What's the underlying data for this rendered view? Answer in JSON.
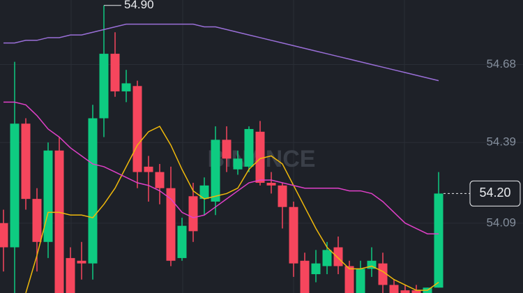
{
  "chart_data": {
    "type": "candlestick",
    "watermark": "BINANCE",
    "open": [
      54.09,
      54.0,
      54.46,
      54.18,
      54.02,
      54.36,
      53.96,
      53.95,
      53.94,
      54.48,
      54.72,
      54.58,
      54.6,
      54.3,
      54.28,
      54.22,
      53.96,
      54.19,
      54.18,
      54.17,
      54.4,
      54.29,
      54.3,
      54.43,
      54.24,
      54.23,
      54.15,
      53.95,
      53.9,
      53.93,
      54.0,
      53.93,
      53.83,
      53.92,
      53.94,
      53.86,
      53.84,
      53.84,
      53.83,
      53.85
    ],
    "high": [
      54.14,
      54.69,
      54.48,
      54.22,
      54.39,
      54.41,
      54.0,
      54.02,
      54.53,
      54.9,
      54.8,
      54.66,
      54.62,
      54.34,
      54.31,
      54.3,
      54.11,
      54.24,
      54.26,
      54.45,
      54.45,
      54.36,
      54.45,
      54.47,
      54.28,
      54.24,
      54.17,
      53.98,
      53.99,
      54.02,
      54.04,
      53.95,
      53.95,
      54.0,
      53.98,
      53.88,
      53.86,
      53.86,
      53.85,
      54.28
    ],
    "low": [
      53.91,
      53.83,
      54.14,
      53.91,
      53.96,
      53.83,
      53.83,
      53.88,
      53.88,
      54.41,
      54.56,
      54.54,
      54.22,
      54.17,
      54.16,
      53.93,
      53.95,
      54.02,
      54.12,
      54.12,
      54.28,
      54.27,
      54.28,
      54.23,
      54.2,
      54.07,
      53.89,
      53.83,
      53.87,
      53.9,
      53.9,
      53.83,
      53.83,
      53.89,
      53.83,
      53.83,
      53.83,
      53.83,
      53.83,
      53.85
    ],
    "close": [
      54.0,
      54.46,
      54.18,
      54.02,
      54.36,
      53.83,
      53.83,
      53.94,
      54.48,
      54.72,
      54.58,
      54.61,
      54.28,
      54.28,
      54.22,
      53.95,
      54.08,
      54.06,
      54.23,
      54.4,
      54.33,
      54.33,
      54.44,
      54.24,
      54.23,
      54.15,
      53.94,
      53.83,
      53.94,
      53.99,
      53.93,
      53.83,
      53.92,
      53.95,
      53.86,
      53.83,
      53.83,
      53.83,
      53.85,
      54.2
    ],
    "up_color": "#0ecb81",
    "down_color": "#f6465d",
    "lines": [
      {
        "color": "#f0b90b",
        "values": [
          null,
          null,
          53.83,
          53.97,
          54.13,
          54.13,
          54.12,
          54.12,
          54.11,
          54.16,
          54.22,
          54.3,
          54.38,
          54.43,
          54.45,
          54.38,
          54.29,
          54.21,
          54.18,
          54.19,
          54.2,
          54.22,
          54.29,
          54.33,
          54.34,
          54.31,
          54.23,
          54.15,
          54.07,
          54.0,
          53.96,
          53.92,
          53.92,
          53.93,
          53.91,
          53.88,
          53.86,
          53.84,
          53.84,
          53.87
        ]
      },
      {
        "color": "#e040c8",
        "values": [
          54.54,
          54.54,
          54.53,
          54.49,
          54.44,
          54.41,
          54.37,
          54.34,
          54.31,
          54.3,
          54.28,
          54.26,
          54.24,
          54.23,
          54.21,
          54.18,
          54.13,
          54.11,
          54.12,
          54.15,
          54.18,
          54.21,
          54.24,
          54.25,
          54.25,
          54.24,
          54.23,
          54.22,
          54.22,
          54.22,
          54.22,
          54.21,
          54.21,
          54.2,
          54.17,
          54.13,
          54.09,
          54.07,
          54.05,
          54.05
        ]
      },
      {
        "color": "#9a6fd8",
        "values": [
          54.76,
          54.76,
          54.77,
          54.77,
          54.78,
          54.78,
          54.79,
          54.79,
          54.8,
          54.81,
          54.82,
          54.83,
          54.83,
          54.83,
          54.83,
          54.83,
          54.83,
          54.83,
          54.82,
          54.82,
          54.81,
          54.8,
          54.79,
          54.78,
          54.77,
          54.76,
          54.75,
          54.74,
          54.73,
          54.72,
          54.71,
          54.7,
          54.69,
          54.68,
          54.67,
          54.66,
          54.65,
          54.64,
          54.63,
          54.62
        ]
      }
    ],
    "ylim": [
      53.83,
      54.92
    ],
    "yticks": [
      54.68,
      54.39,
      54.09
    ],
    "grid": true,
    "high_marker": {
      "value": 54.9,
      "label": "54.90"
    },
    "last_price": {
      "value": 54.2,
      "label": "54.20"
    }
  }
}
